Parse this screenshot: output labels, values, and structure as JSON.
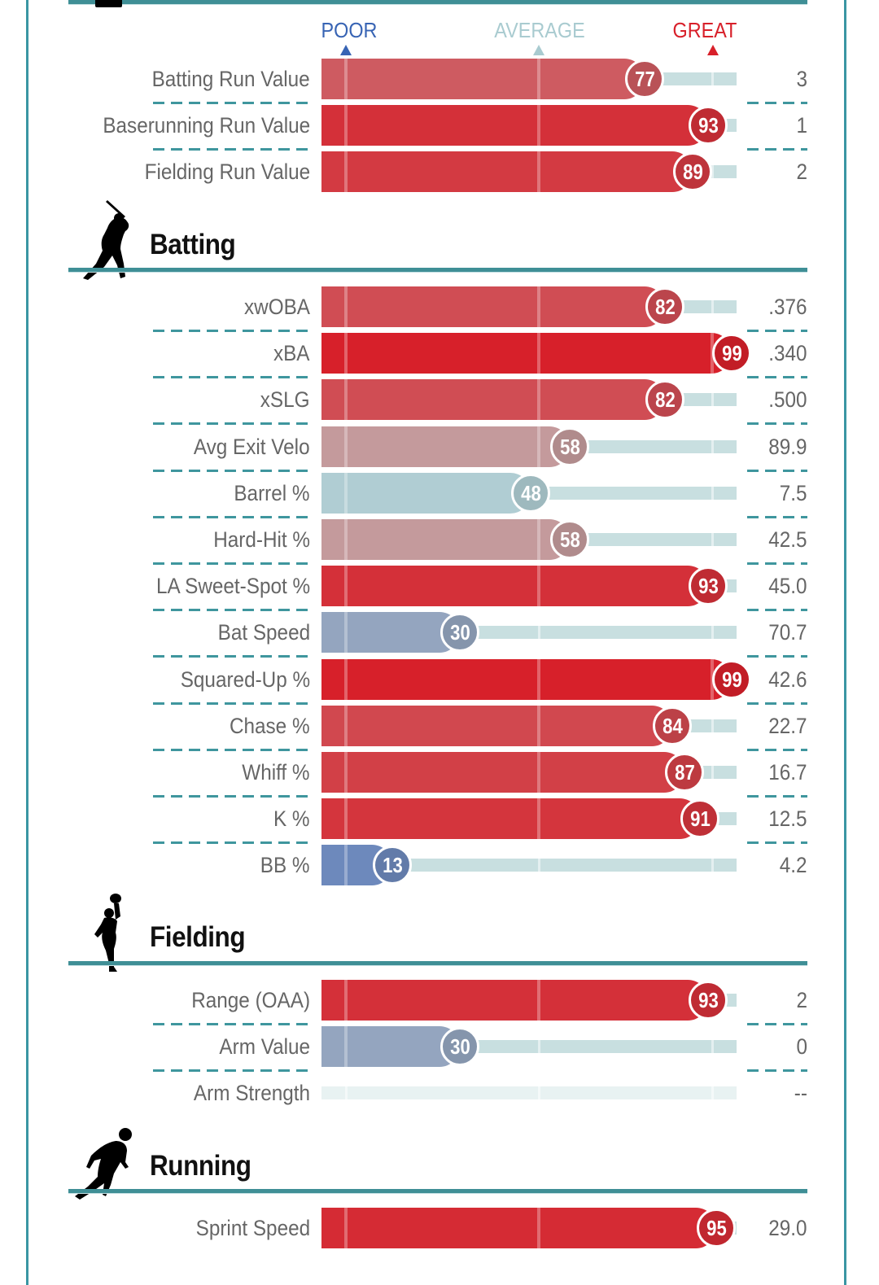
{
  "scale": {
    "poor": {
      "label": "POOR",
      "color": "#3864b4"
    },
    "average": {
      "label": "AVERAGE",
      "color": "#a9cbd0"
    },
    "great": {
      "label": "GREAT",
      "color": "#d8202a"
    }
  },
  "colors": {
    "frame": "#3a96a3",
    "rule": "#3f8f96"
  },
  "sections": [
    {
      "id": "value",
      "title": "",
      "icon": "",
      "rows": [
        {
          "label": "Batting Run Value",
          "percentile": 77,
          "value": "3"
        },
        {
          "label": "Baserunning Run Value",
          "percentile": 93,
          "value": "1"
        },
        {
          "label": "Fielding Run Value",
          "percentile": 89,
          "value": "2"
        }
      ]
    },
    {
      "id": "batting",
      "title": "Batting",
      "icon": "batter-silhouette-icon",
      "rows": [
        {
          "label": "xwOBA",
          "percentile": 82,
          "value": ".376"
        },
        {
          "label": "xBA",
          "percentile": 99,
          "value": ".340"
        },
        {
          "label": "xSLG",
          "percentile": 82,
          "value": ".500"
        },
        {
          "label": "Avg Exit Velo",
          "percentile": 58,
          "value": "89.9"
        },
        {
          "label": "Barrel %",
          "percentile": 48,
          "value": "7.5"
        },
        {
          "label": "Hard-Hit %",
          "percentile": 58,
          "value": "42.5"
        },
        {
          "label": "LA Sweet-Spot %",
          "percentile": 93,
          "value": "45.0"
        },
        {
          "label": "Bat Speed",
          "percentile": 30,
          "value": "70.7"
        },
        {
          "label": "Squared-Up %",
          "percentile": 99,
          "value": "42.6"
        },
        {
          "label": "Chase %",
          "percentile": 84,
          "value": "22.7"
        },
        {
          "label": "Whiff %",
          "percentile": 87,
          "value": "16.7"
        },
        {
          "label": "K %",
          "percentile": 91,
          "value": "12.5"
        },
        {
          "label": "BB %",
          "percentile": 13,
          "value": "4.2"
        }
      ]
    },
    {
      "id": "fielding",
      "title": "Fielding",
      "icon": "fielder-silhouette-icon",
      "rows": [
        {
          "label": "Range (OAA)",
          "percentile": 93,
          "value": "2"
        },
        {
          "label": "Arm Value",
          "percentile": 30,
          "value": "0"
        },
        {
          "label": "Arm Strength",
          "percentile": null,
          "value": "--"
        }
      ]
    },
    {
      "id": "running",
      "title": "Running",
      "icon": "runner-silhouette-icon",
      "rows": [
        {
          "label": "Sprint Speed",
          "percentile": 95,
          "value": "29.0"
        }
      ]
    }
  ],
  "chart_data": {
    "type": "bar",
    "orientation": "horizontal",
    "title": "",
    "xlim": [
      0,
      100
    ],
    "scale_labels": [
      "POOR",
      "AVERAGE",
      "GREAT"
    ],
    "categories": [
      "Batting Run Value",
      "Baserunning Run Value",
      "Fielding Run Value",
      "xwOBA",
      "xBA",
      "xSLG",
      "Avg Exit Velo",
      "Barrel %",
      "Hard-Hit %",
      "LA Sweet-Spot %",
      "Bat Speed",
      "Squared-Up %",
      "Chase %",
      "Whiff %",
      "K %",
      "BB %",
      "Range (OAA)",
      "Arm Value",
      "Arm Strength",
      "Sprint Speed"
    ],
    "series": [
      {
        "name": "Percentile",
        "values": [
          77,
          93,
          89,
          82,
          99,
          82,
          58,
          48,
          58,
          93,
          30,
          99,
          84,
          87,
          91,
          13,
          93,
          30,
          null,
          95
        ]
      },
      {
        "name": "Value",
        "values": [
          "3",
          "1",
          "2",
          ".376",
          ".340",
          ".500",
          "89.9",
          "7.5",
          "42.5",
          "45.0",
          "70.7",
          "42.6",
          "22.7",
          "16.7",
          "12.5",
          "4.2",
          "2",
          "0",
          "--",
          "29.0"
        ]
      }
    ]
  }
}
